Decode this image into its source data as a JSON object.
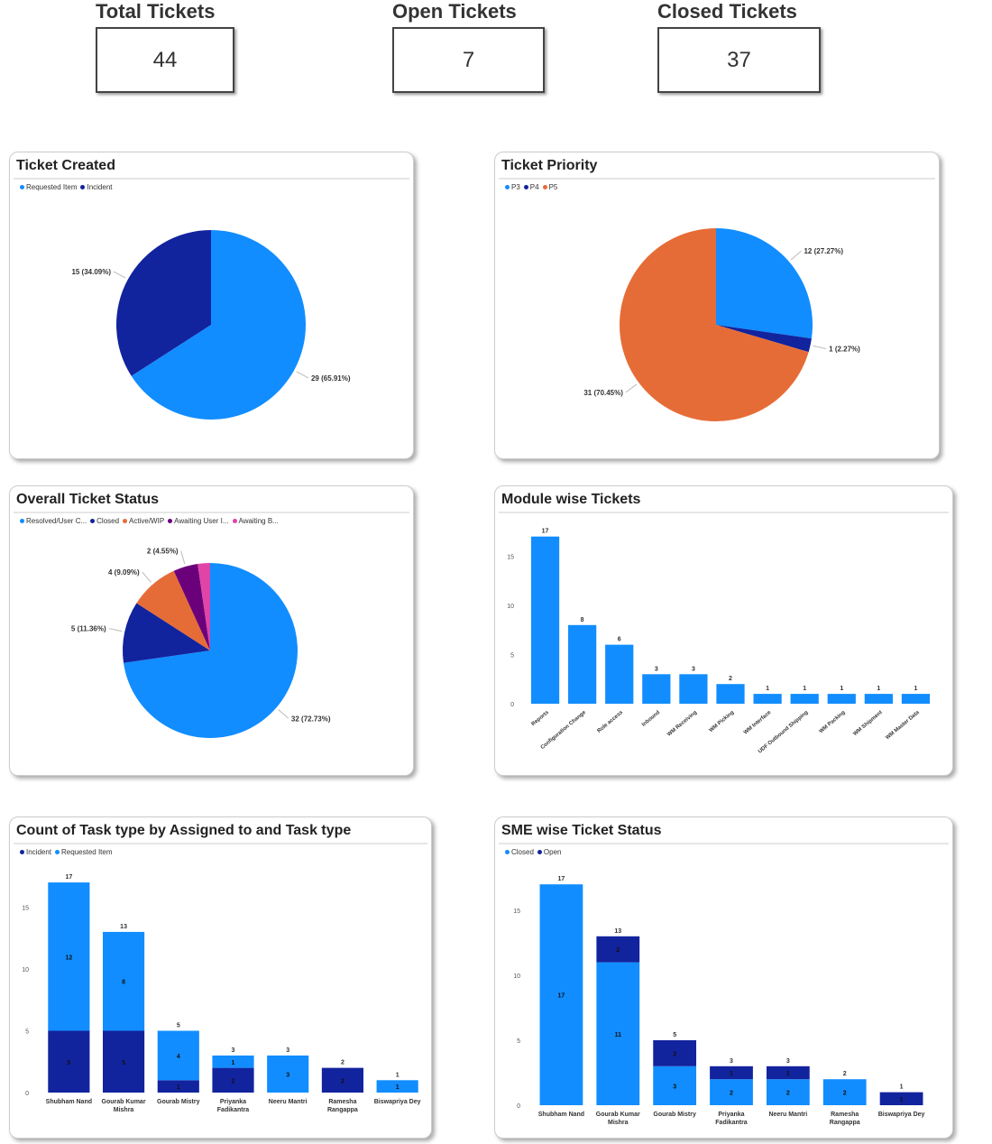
{
  "kpis": [
    {
      "label": "Total Tickets",
      "value": "44"
    },
    {
      "label": "Open Tickets",
      "value": "7"
    },
    {
      "label": "Closed Tickets",
      "value": "37"
    }
  ],
  "colors": {
    "light_blue": "#118DFF",
    "dark_blue": "#12239E",
    "orange": "#E66C37",
    "purple": "#6B007B",
    "pink": "#E044A7"
  },
  "chart_data": [
    {
      "id": "ticket-created",
      "type": "pie",
      "title": "Ticket Created",
      "legend": [
        "Requested Item",
        "Incident"
      ],
      "legend_placement": "top-left",
      "slices": [
        {
          "name": "Requested Item",
          "value": 29,
          "label": "29 (65.91%)",
          "color": "#118DFF"
        },
        {
          "name": "Incident",
          "value": 15,
          "label": "15 (34.09%)",
          "color": "#12239E"
        }
      ]
    },
    {
      "id": "ticket-priority",
      "type": "pie",
      "title": "Ticket Priority",
      "legend": [
        "P3",
        "P4",
        "P5"
      ],
      "legend_placement": "top-left",
      "slices": [
        {
          "name": "P3",
          "value": 12,
          "label": "12 (27.27%)",
          "color": "#118DFF"
        },
        {
          "name": "P4",
          "value": 1,
          "label": "1 (2.27%)",
          "color": "#12239E"
        },
        {
          "name": "P5",
          "value": 31,
          "label": "31 (70.45%)",
          "color": "#E66C37"
        }
      ]
    },
    {
      "id": "overall-status",
      "type": "pie",
      "title": "Overall Ticket Status",
      "legend": [
        "Resolved/User C...",
        "Closed",
        "Active/WIP",
        "Awaiting User I...",
        "Awaiting B..."
      ],
      "legend_placement": "top-left",
      "slices": [
        {
          "name": "Resolved/User C...",
          "value": 32,
          "label": "32 (72.73%)",
          "color": "#118DFF"
        },
        {
          "name": "Closed",
          "value": 5,
          "label": "5 (11.36%)",
          "color": "#12239E"
        },
        {
          "name": "Active/WIP",
          "value": 4,
          "label": "4 (9.09%)",
          "color": "#E66C37"
        },
        {
          "name": "Awaiting User I...",
          "value": 2,
          "label": "2 (4.55%)",
          "color": "#6B007B"
        },
        {
          "name": "Awaiting B...",
          "value": 1,
          "label": "",
          "color": "#E044A7"
        }
      ]
    },
    {
      "id": "module-wise",
      "type": "bar",
      "title": "Module wise Tickets",
      "categories": [
        "Reports",
        "Configuration Change",
        "Role access",
        "Inbound",
        "WM Receiving",
        "WM Picking",
        "WM Interface",
        "UDF Outbound Shipping",
        "WM Packing",
        "WM Shipment",
        "WM Master Data"
      ],
      "series": [
        {
          "values": [
            17,
            8,
            6,
            3,
            3,
            2,
            1,
            1,
            1,
            1,
            1
          ],
          "color": "#118DFF"
        }
      ],
      "yticks": [
        0,
        5,
        10,
        15
      ],
      "ylim": [
        0,
        17
      ],
      "grid": false
    },
    {
      "id": "task-type",
      "type": "bar",
      "stacked": true,
      "title": "Count of Task type by Assigned to and Task type",
      "legend": [
        "Incident",
        "Requested Item"
      ],
      "legend_placement": "top-left",
      "categories": [
        "Shubham Nand",
        "Gourab Kumar Mishra",
        "Gourab Mistry",
        "Priyanka Fadikantra",
        "Neeru Mantri",
        "Ramesha Rangappa",
        "Biswapriya Dey"
      ],
      "series": [
        {
          "name": "Incident",
          "values": [
            5,
            5,
            1,
            2,
            0,
            2,
            0
          ],
          "color": "#12239E"
        },
        {
          "name": "Requested Item",
          "values": [
            12,
            8,
            4,
            1,
            3,
            0,
            1
          ],
          "color": "#118DFF"
        }
      ],
      "totals": [
        17,
        13,
        5,
        3,
        3,
        2,
        1
      ],
      "yticks": [
        0,
        5,
        10,
        15
      ],
      "ylim": [
        0,
        17
      ],
      "grid": false
    },
    {
      "id": "sme-status",
      "type": "bar",
      "stacked": true,
      "title": "SME wise Ticket Status",
      "legend": [
        "Closed",
        "Open"
      ],
      "legend_placement": "top-left",
      "categories": [
        "Shubham Nand",
        "Gourab Kumar Mishra",
        "Gourab Mistry",
        "Priyanka Fadikantra",
        "Neeru Mantri",
        "Ramesha Rangappa",
        "Biswapriya Dey"
      ],
      "series": [
        {
          "name": "Closed",
          "values": [
            17,
            11,
            3,
            2,
            2,
            2,
            0
          ],
          "color": "#118DFF"
        },
        {
          "name": "Open",
          "values": [
            0,
            2,
            2,
            1,
            1,
            0,
            1
          ],
          "color": "#12239E"
        }
      ],
      "totals": [
        17,
        13,
        5,
        3,
        3,
        2,
        1
      ],
      "yticks": [
        0,
        5,
        10,
        15
      ],
      "ylim": [
        0,
        17
      ],
      "grid": false
    }
  ]
}
